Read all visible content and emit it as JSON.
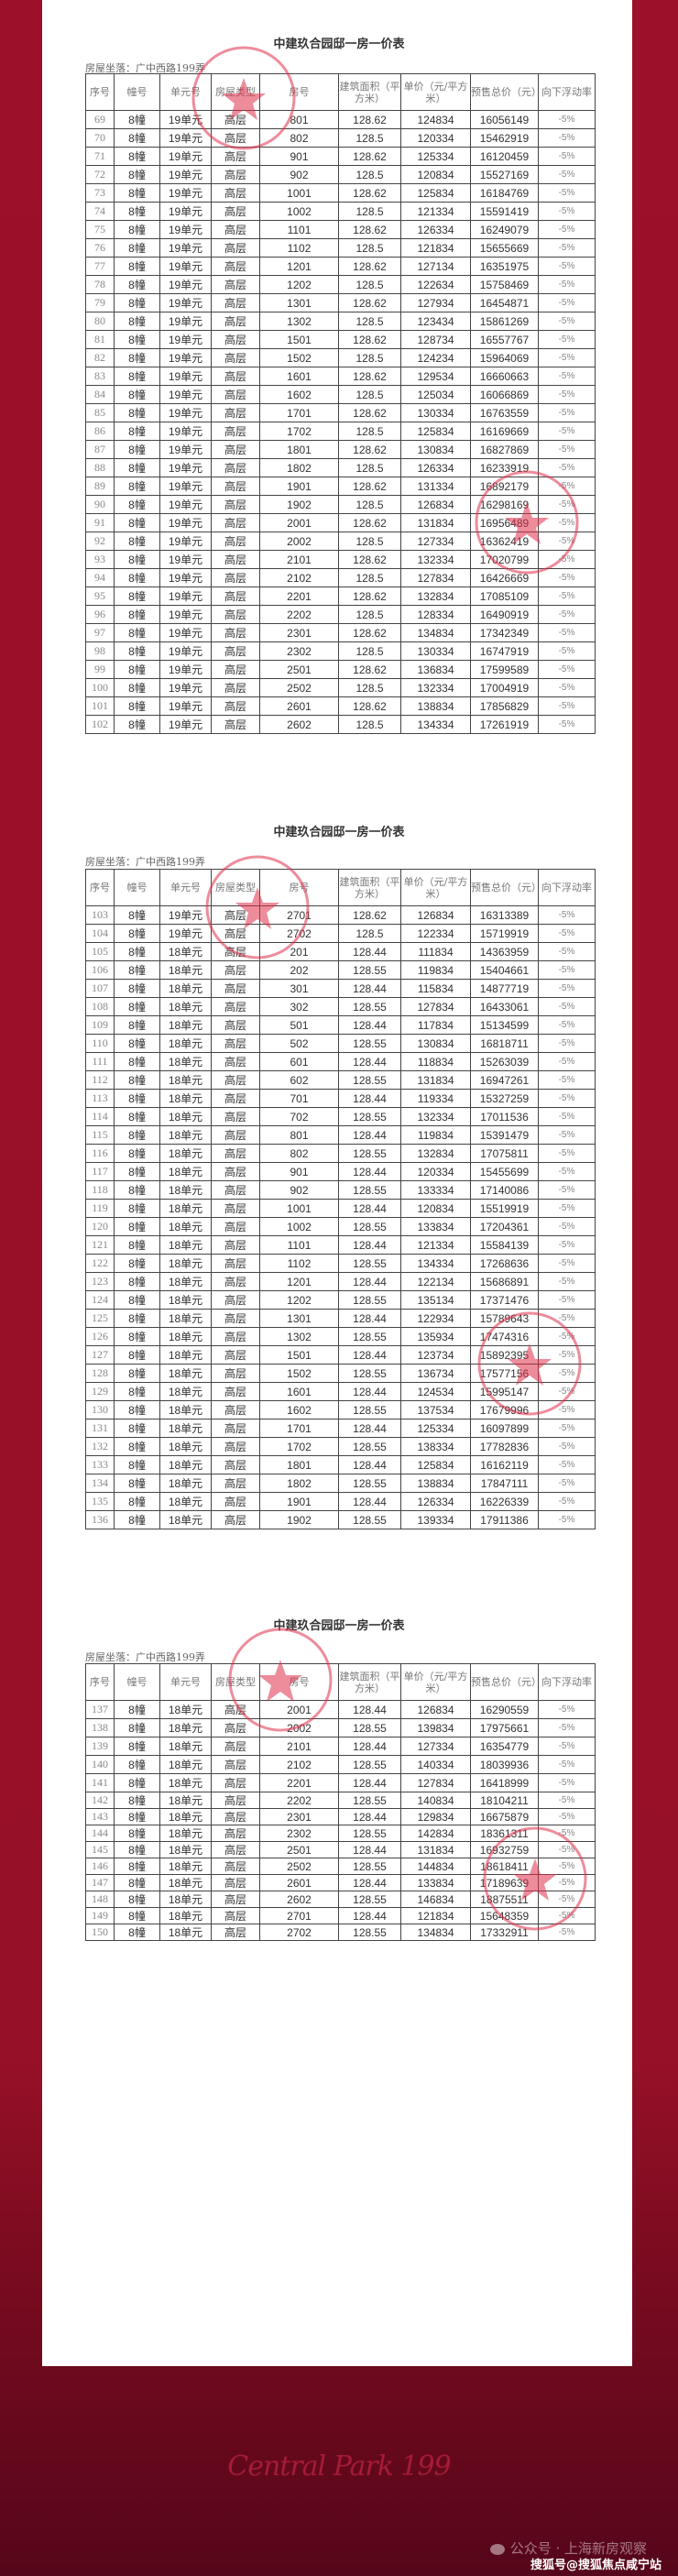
{
  "document": {
    "title": "中建玖合园邸一房一价表",
    "location": "房屋坐落：广中西路199弄",
    "headers": [
      "序号",
      "幢号",
      "单元号",
      "房屋类型",
      "房号",
      "建筑面积（平方米）",
      "单价（元/平方米）",
      "预售总价（元）",
      "向下浮动率"
    ],
    "pages": [
      {
        "rows": [
          [
            "69",
            "8幢",
            "19单元",
            "高层",
            "801",
            "128.62",
            "124834",
            "16056149",
            "-5%"
          ],
          [
            "70",
            "8幢",
            "19单元",
            "高层",
            "802",
            "128.5",
            "120334",
            "15462919",
            "-5%"
          ],
          [
            "71",
            "8幢",
            "19单元",
            "高层",
            "901",
            "128.62",
            "125334",
            "16120459",
            "-5%"
          ],
          [
            "72",
            "8幢",
            "19单元",
            "高层",
            "902",
            "128.5",
            "120834",
            "15527169",
            "-5%"
          ],
          [
            "73",
            "8幢",
            "19单元",
            "高层",
            "1001",
            "128.62",
            "125834",
            "16184769",
            "-5%"
          ],
          [
            "74",
            "8幢",
            "19单元",
            "高层",
            "1002",
            "128.5",
            "121334",
            "15591419",
            "-5%"
          ],
          [
            "75",
            "8幢",
            "19单元",
            "高层",
            "1101",
            "128.62",
            "126334",
            "16249079",
            "-5%"
          ],
          [
            "76",
            "8幢",
            "19单元",
            "高层",
            "1102",
            "128.5",
            "121834",
            "15655669",
            "-5%"
          ],
          [
            "77",
            "8幢",
            "19单元",
            "高层",
            "1201",
            "128.62",
            "127134",
            "16351975",
            "-5%"
          ],
          [
            "78",
            "8幢",
            "19单元",
            "高层",
            "1202",
            "128.5",
            "122634",
            "15758469",
            "-5%"
          ],
          [
            "79",
            "8幢",
            "19单元",
            "高层",
            "1301",
            "128.62",
            "127934",
            "16454871",
            "-5%"
          ],
          [
            "80",
            "8幢",
            "19单元",
            "高层",
            "1302",
            "128.5",
            "123434",
            "15861269",
            "-5%"
          ],
          [
            "81",
            "8幢",
            "19单元",
            "高层",
            "1501",
            "128.62",
            "128734",
            "16557767",
            "-5%"
          ],
          [
            "82",
            "8幢",
            "19单元",
            "高层",
            "1502",
            "128.5",
            "124234",
            "15964069",
            "-5%"
          ],
          [
            "83",
            "8幢",
            "19单元",
            "高层",
            "1601",
            "128.62",
            "129534",
            "16660663",
            "-5%"
          ],
          [
            "84",
            "8幢",
            "19单元",
            "高层",
            "1602",
            "128.5",
            "125034",
            "16066869",
            "-5%"
          ],
          [
            "85",
            "8幢",
            "19单元",
            "高层",
            "1701",
            "128.62",
            "130334",
            "16763559",
            "-5%"
          ],
          [
            "86",
            "8幢",
            "19单元",
            "高层",
            "1702",
            "128.5",
            "125834",
            "16169669",
            "-5%"
          ],
          [
            "87",
            "8幢",
            "19单元",
            "高层",
            "1801",
            "128.62",
            "130834",
            "16827869",
            "-5%"
          ],
          [
            "88",
            "8幢",
            "19单元",
            "高层",
            "1802",
            "128.5",
            "126334",
            "16233919",
            "-5%"
          ],
          [
            "89",
            "8幢",
            "19单元",
            "高层",
            "1901",
            "128.62",
            "131334",
            "16892179",
            "-5%"
          ],
          [
            "90",
            "8幢",
            "19单元",
            "高层",
            "1902",
            "128.5",
            "126834",
            "16298169",
            "-5%"
          ],
          [
            "91",
            "8幢",
            "19单元",
            "高层",
            "2001",
            "128.62",
            "131834",
            "16956489",
            "-5%"
          ],
          [
            "92",
            "8幢",
            "19单元",
            "高层",
            "2002",
            "128.5",
            "127334",
            "16362419",
            "-5%"
          ],
          [
            "93",
            "8幢",
            "19单元",
            "高层",
            "2101",
            "128.62",
            "132334",
            "17020799",
            "-5%"
          ],
          [
            "94",
            "8幢",
            "19单元",
            "高层",
            "2102",
            "128.5",
            "127834",
            "16426669",
            "-5%"
          ],
          [
            "95",
            "8幢",
            "19单元",
            "高层",
            "2201",
            "128.62",
            "132834",
            "17085109",
            "-5%"
          ],
          [
            "96",
            "8幢",
            "19单元",
            "高层",
            "2202",
            "128.5",
            "128334",
            "16490919",
            "-5%"
          ],
          [
            "97",
            "8幢",
            "19单元",
            "高层",
            "2301",
            "128.62",
            "134834",
            "17342349",
            "-5%"
          ],
          [
            "98",
            "8幢",
            "19单元",
            "高层",
            "2302",
            "128.5",
            "130334",
            "16747919",
            "-5%"
          ],
          [
            "99",
            "8幢",
            "19单元",
            "高层",
            "2501",
            "128.62",
            "136834",
            "17599589",
            "-5%"
          ],
          [
            "100",
            "8幢",
            "19单元",
            "高层",
            "2502",
            "128.5",
            "132334",
            "17004919",
            "-5%"
          ],
          [
            "101",
            "8幢",
            "19单元",
            "高层",
            "2601",
            "128.62",
            "138834",
            "17856829",
            "-5%"
          ],
          [
            "102",
            "8幢",
            "19单元",
            "高层",
            "2602",
            "128.5",
            "134334",
            "17261919",
            "-5%"
          ]
        ]
      },
      {
        "rows": [
          [
            "103",
            "8幢",
            "19单元",
            "高层",
            "2701",
            "128.62",
            "126834",
            "16313389",
            "-5%"
          ],
          [
            "104",
            "8幢",
            "19单元",
            "高层",
            "2702",
            "128.5",
            "122334",
            "15719919",
            "-5%"
          ],
          [
            "105",
            "8幢",
            "18单元",
            "高层",
            "201",
            "128.44",
            "111834",
            "14363959",
            "-5%"
          ],
          [
            "106",
            "8幢",
            "18单元",
            "高层",
            "202",
            "128.55",
            "119834",
            "15404661",
            "-5%"
          ],
          [
            "107",
            "8幢",
            "18单元",
            "高层",
            "301",
            "128.44",
            "115834",
            "14877719",
            "-5%"
          ],
          [
            "108",
            "8幢",
            "18单元",
            "高层",
            "302",
            "128.55",
            "127834",
            "16433061",
            "-5%"
          ],
          [
            "109",
            "8幢",
            "18单元",
            "高层",
            "501",
            "128.44",
            "117834",
            "15134599",
            "-5%"
          ],
          [
            "110",
            "8幢",
            "18单元",
            "高层",
            "502",
            "128.55",
            "130834",
            "16818711",
            "-5%"
          ],
          [
            "111",
            "8幢",
            "18单元",
            "高层",
            "601",
            "128.44",
            "118834",
            "15263039",
            "-5%"
          ],
          [
            "112",
            "8幢",
            "18单元",
            "高层",
            "602",
            "128.55",
            "131834",
            "16947261",
            "-5%"
          ],
          [
            "113",
            "8幢",
            "18单元",
            "高层",
            "701",
            "128.44",
            "119334",
            "15327259",
            "-5%"
          ],
          [
            "114",
            "8幢",
            "18单元",
            "高层",
            "702",
            "128.55",
            "132334",
            "17011536",
            "-5%"
          ],
          [
            "115",
            "8幢",
            "18单元",
            "高层",
            "801",
            "128.44",
            "119834",
            "15391479",
            "-5%"
          ],
          [
            "116",
            "8幢",
            "18单元",
            "高层",
            "802",
            "128.55",
            "132834",
            "17075811",
            "-5%"
          ],
          [
            "117",
            "8幢",
            "18单元",
            "高层",
            "901",
            "128.44",
            "120334",
            "15455699",
            "-5%"
          ],
          [
            "118",
            "8幢",
            "18单元",
            "高层",
            "902",
            "128.55",
            "133334",
            "17140086",
            "-5%"
          ],
          [
            "119",
            "8幢",
            "18单元",
            "高层",
            "1001",
            "128.44",
            "120834",
            "15519919",
            "-5%"
          ],
          [
            "120",
            "8幢",
            "18单元",
            "高层",
            "1002",
            "128.55",
            "133834",
            "17204361",
            "-5%"
          ],
          [
            "121",
            "8幢",
            "18单元",
            "高层",
            "1101",
            "128.44",
            "121334",
            "15584139",
            "-5%"
          ],
          [
            "122",
            "8幢",
            "18单元",
            "高层",
            "1102",
            "128.55",
            "134334",
            "17268636",
            "-5%"
          ],
          [
            "123",
            "8幢",
            "18单元",
            "高层",
            "1201",
            "128.44",
            "122134",
            "15686891",
            "-5%"
          ],
          [
            "124",
            "8幢",
            "18单元",
            "高层",
            "1202",
            "128.55",
            "135134",
            "17371476",
            "-5%"
          ],
          [
            "125",
            "8幢",
            "18单元",
            "高层",
            "1301",
            "128.44",
            "122934",
            "15789643",
            "-5%"
          ],
          [
            "126",
            "8幢",
            "18单元",
            "高层",
            "1302",
            "128.55",
            "135934",
            "17474316",
            "-5%"
          ],
          [
            "127",
            "8幢",
            "18单元",
            "高层",
            "1501",
            "128.44",
            "123734",
            "15892395",
            "-5%"
          ],
          [
            "128",
            "8幢",
            "18单元",
            "高层",
            "1502",
            "128.55",
            "136734",
            "17577156",
            "-5%"
          ],
          [
            "129",
            "8幢",
            "18单元",
            "高层",
            "1601",
            "128.44",
            "124534",
            "15995147",
            "-5%"
          ],
          [
            "130",
            "8幢",
            "18单元",
            "高层",
            "1602",
            "128.55",
            "137534",
            "17679996",
            "-5%"
          ],
          [
            "131",
            "8幢",
            "18单元",
            "高层",
            "1701",
            "128.44",
            "125334",
            "16097899",
            "-5%"
          ],
          [
            "132",
            "8幢",
            "18单元",
            "高层",
            "1702",
            "128.55",
            "138334",
            "17782836",
            "-5%"
          ],
          [
            "133",
            "8幢",
            "18单元",
            "高层",
            "1801",
            "128.44",
            "125834",
            "16162119",
            "-5%"
          ],
          [
            "134",
            "8幢",
            "18单元",
            "高层",
            "1802",
            "128.55",
            "138834",
            "17847111",
            "-5%"
          ],
          [
            "135",
            "8幢",
            "18单元",
            "高层",
            "1901",
            "128.44",
            "126334",
            "16226339",
            "-5%"
          ],
          [
            "136",
            "8幢",
            "18单元",
            "高层",
            "1902",
            "128.55",
            "139334",
            "17911386",
            "-5%"
          ]
        ]
      },
      {
        "rows": [
          [
            "137",
            "8幢",
            "18单元",
            "高层",
            "2001",
            "128.44",
            "126834",
            "16290559",
            "-5%"
          ],
          [
            "138",
            "8幢",
            "18单元",
            "高层",
            "2002",
            "128.55",
            "139834",
            "17975661",
            "-5%"
          ],
          [
            "139",
            "8幢",
            "18单元",
            "高层",
            "2101",
            "128.44",
            "127334",
            "16354779",
            "-5%"
          ],
          [
            "140",
            "8幢",
            "18单元",
            "高层",
            "2102",
            "128.55",
            "140334",
            "18039936",
            "-5%"
          ],
          [
            "141",
            "8幢",
            "18单元",
            "高层",
            "2201",
            "128.44",
            "127834",
            "16418999",
            "-5%"
          ],
          [
            "142",
            "8幢",
            "18单元",
            "高层",
            "2202",
            "128.55",
            "140834",
            "18104211",
            "-5%"
          ],
          [
            "143",
            "8幢",
            "18单元",
            "高层",
            "2301",
            "128.44",
            "129834",
            "16675879",
            "-5%"
          ],
          [
            "144",
            "8幢",
            "18单元",
            "高层",
            "2302",
            "128.55",
            "142834",
            "18361311",
            "-5%"
          ],
          [
            "145",
            "8幢",
            "18单元",
            "高层",
            "2501",
            "128.44",
            "131834",
            "16932759",
            "-5%"
          ],
          [
            "146",
            "8幢",
            "18单元",
            "高层",
            "2502",
            "128.55",
            "144834",
            "18618411",
            "-5%"
          ],
          [
            "147",
            "8幢",
            "18单元",
            "高层",
            "2601",
            "128.44",
            "133834",
            "17189639",
            "-5%"
          ],
          [
            "148",
            "8幢",
            "18单元",
            "高层",
            "2602",
            "128.55",
            "146834",
            "18875511",
            "-5%"
          ],
          [
            "149",
            "8幢",
            "18单元",
            "高层",
            "2701",
            "128.44",
            "121834",
            "15648359",
            "-5%"
          ],
          [
            "150",
            "8幢",
            "18单元",
            "高层",
            "2702",
            "128.55",
            "134834",
            "17332911",
            "-5%"
          ]
        ]
      }
    ]
  },
  "footer": {
    "brand": "Central Park 199",
    "wechat_account": "公众号 · 上海新房观察",
    "sohu_watermark": "搜狐号@搜狐焦点咸宁站"
  },
  "colors": {
    "background": "#9c1029",
    "stamp": "#e0304a"
  }
}
